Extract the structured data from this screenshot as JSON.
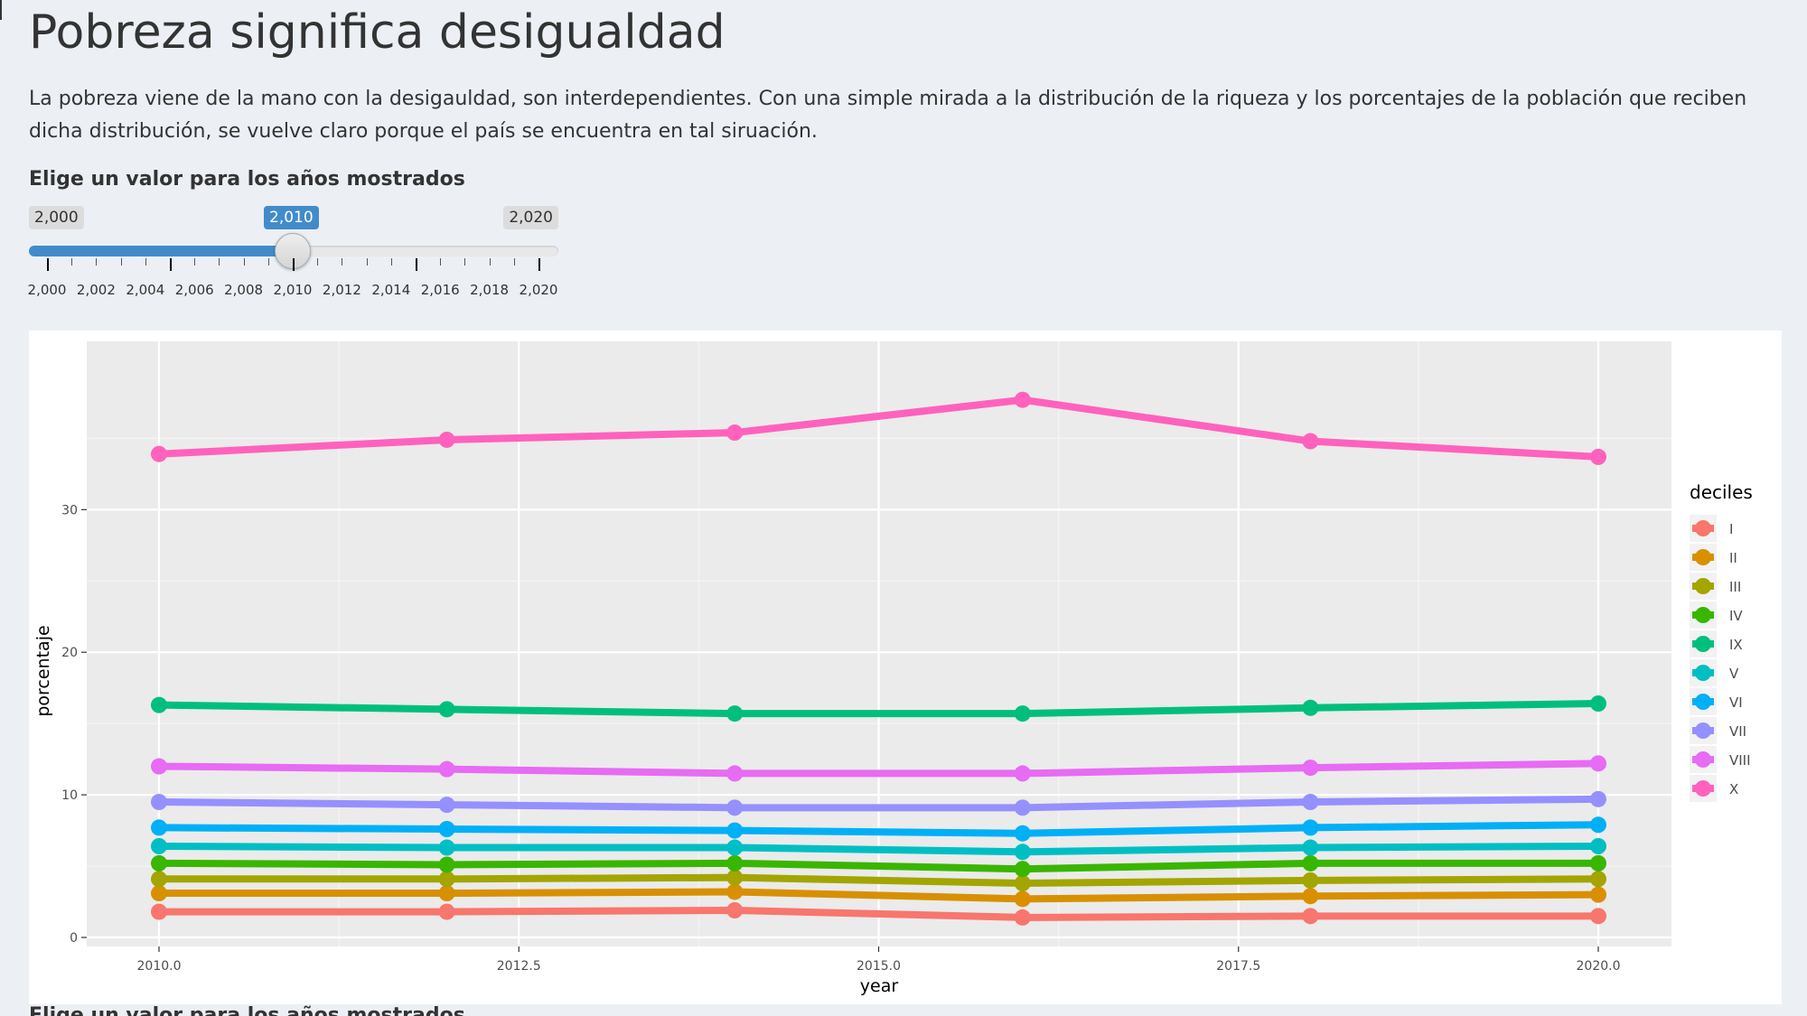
{
  "page": {
    "title": "Pobreza significa desigualdad",
    "intro": "La pobreza viene de la mano con la desigauldad, son interdependientes. Con una simple mirada a la distribución de la riqueza y los porcentajes de la población que reciben dicha distribución, se vuelve claro porque el país se encuentra en tal siruación.",
    "bottom_label": "Elige un valor para los años mostrados"
  },
  "slider": {
    "label": "Elige un valor para los años mostrados",
    "min": 2000,
    "max": 2020,
    "value": 2010,
    "min_label": "2,000",
    "max_label": "2,020",
    "value_label": "2,010",
    "tick_labels": [
      "2,000",
      "2,002",
      "2,004",
      "2,006",
      "2,008",
      "2,010",
      "2,012",
      "2,014",
      "2,016",
      "2,018",
      "2,020"
    ],
    "accent_color": "#428bca"
  },
  "chart_data": {
    "type": "line",
    "title": "",
    "xlabel": "year",
    "ylabel": "porcentaje",
    "xlim": [
      2010,
      2020
    ],
    "ylim": [
      0,
      38
    ],
    "x_ticks": [
      "2010.0",
      "2012.5",
      "2015.0",
      "2017.5",
      "2020.0"
    ],
    "y_ticks": [
      "0",
      "10",
      "20",
      "30"
    ],
    "grid": true,
    "legend_title": "deciles",
    "legend_position": "right",
    "x": [
      2010,
      2012,
      2014,
      2016,
      2018,
      2020
    ],
    "series": [
      {
        "name": "I",
        "color": "#F8766D",
        "values": [
          1.8,
          1.8,
          1.9,
          1.4,
          1.5,
          1.5
        ]
      },
      {
        "name": "II",
        "color": "#D89000",
        "values": [
          3.1,
          3.1,
          3.2,
          2.7,
          2.9,
          3.0
        ]
      },
      {
        "name": "III",
        "color": "#A3A500",
        "values": [
          4.1,
          4.1,
          4.2,
          3.8,
          4.0,
          4.1
        ]
      },
      {
        "name": "IV",
        "color": "#39B600",
        "values": [
          5.2,
          5.1,
          5.2,
          4.8,
          5.2,
          5.2
        ]
      },
      {
        "name": "IX",
        "color": "#00BF7D",
        "values": [
          16.3,
          16.0,
          15.7,
          15.7,
          16.1,
          16.4
        ]
      },
      {
        "name": "V",
        "color": "#00BFC4",
        "values": [
          6.4,
          6.3,
          6.3,
          6.0,
          6.3,
          6.4
        ]
      },
      {
        "name": "VI",
        "color": "#00B0F6",
        "values": [
          7.7,
          7.6,
          7.5,
          7.3,
          7.7,
          7.9
        ]
      },
      {
        "name": "VII",
        "color": "#9590FF",
        "values": [
          9.5,
          9.3,
          9.1,
          9.1,
          9.5,
          9.7
        ]
      },
      {
        "name": "VIII",
        "color": "#E76BF3",
        "values": [
          12.0,
          11.8,
          11.5,
          11.5,
          11.9,
          12.2
        ]
      },
      {
        "name": "X",
        "color": "#FF62BC",
        "values": [
          33.9,
          34.9,
          35.4,
          37.7,
          34.8,
          33.7
        ]
      }
    ]
  }
}
